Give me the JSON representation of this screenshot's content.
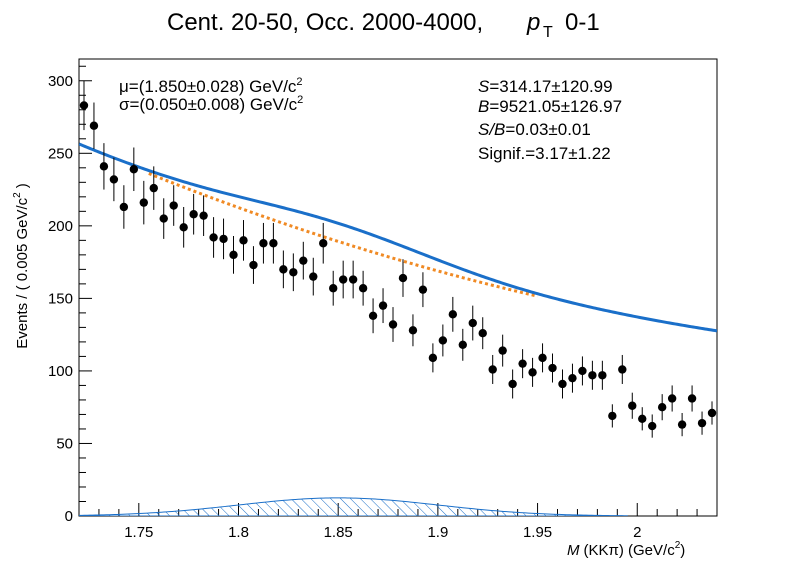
{
  "chart_data": {
    "type": "scatter",
    "title": "Cent. 20-50, Occ. 2000-4000,",
    "title_pt_symbol": "p",
    "title_pt_subscript": "T",
    "title_pt_range": "0-1",
    "xlabel_symbol": "M",
    "xlabel_rest": "(KKπ) (GeV/c",
    "xlabel_power": "2",
    "xlabel_close": ")",
    "ylabel": "Events / ( 0.005 GeV/c",
    "ylabel_power": "2",
    "ylabel_close": ")",
    "xlim": [
      1.72,
      2.04
    ],
    "ylim": [
      0,
      315
    ],
    "x_ticks": [
      "1.75",
      "1.8",
      "1.85",
      "1.9",
      "1.95",
      "2"
    ],
    "y_ticks": [
      "0",
      "50",
      "100",
      "150",
      "200",
      "250",
      "300"
    ],
    "fit_params": {
      "mu": "μ=(1.850±0.028) GeV/c",
      "mu_power": "2",
      "sigma": "σ=(0.050±0.008) GeV/c",
      "sigma_power": "2"
    },
    "stats": {
      "S_sym": "S",
      "S_val": "=314.17±120.99",
      "B_sym": "B",
      "B_val": "=9521.05±126.97",
      "SB_sym": "S/B",
      "SB_val": "=0.03±0.01",
      "signif": "Signif.=3.17±1.22"
    },
    "colors": {
      "data": "#000000",
      "total_fit": "#1a6fc9",
      "background_fit": "#f08a24",
      "signal": "#1a6fc9"
    },
    "series": [
      {
        "x": [
          1.7225,
          1.7275,
          1.7325,
          1.7375,
          1.7425,
          1.7475,
          1.7525,
          1.7575,
          1.7625,
          1.7675,
          1.7725,
          1.7775,
          1.7825,
          1.7875,
          1.7925,
          1.7975,
          1.8025,
          1.8075,
          1.8125,
          1.8175,
          1.8225,
          1.8275,
          1.8325,
          1.8375,
          1.8425,
          1.8475,
          1.8525,
          1.8575,
          1.8625,
          1.8675,
          1.8725,
          1.8775,
          1.8825,
          1.8875,
          1.8925,
          1.8975,
          1.9025,
          1.9075,
          1.9125,
          1.9175,
          1.9225,
          1.9275,
          1.9325,
          1.9375,
          1.9425,
          1.9475,
          1.9525,
          1.9575,
          1.9625,
          1.9675,
          1.9725,
          1.9775,
          1.9825,
          1.9875,
          1.9925,
          1.9975,
          2.0025,
          2.0075,
          2.0125,
          2.0175,
          2.0225,
          2.0275,
          2.0325,
          2.0375
        ],
        "values": [
          283,
          269,
          241,
          232,
          213,
          239,
          216,
          226,
          205,
          214,
          199,
          208,
          207,
          192,
          191,
          180,
          190,
          173,
          188,
          188,
          170,
          168,
          176,
          165,
          188,
          157,
          163,
          163,
          157,
          138,
          145,
          132,
          164,
          128,
          156,
          109,
          121,
          139,
          118,
          133,
          126,
          101,
          114,
          91,
          105,
          99,
          109,
          102,
          91,
          95,
          100,
          97,
          97,
          69,
          101,
          76,
          67,
          62,
          75,
          81,
          63,
          81,
          64,
          71
        ],
        "errors": [
          17,
          16,
          16,
          15,
          15,
          15,
          15,
          15,
          14,
          14,
          14,
          14,
          14,
          14,
          14,
          13,
          14,
          13,
          14,
          14,
          13,
          13,
          13,
          13,
          14,
          12,
          13,
          13,
          12,
          12,
          12,
          12,
          13,
          11,
          12,
          10,
          11,
          12,
          11,
          12,
          11,
          10,
          11,
          10,
          10,
          10,
          10,
          10,
          10,
          10,
          10,
          10,
          10,
          8,
          10,
          9,
          8,
          8,
          9,
          9,
          8,
          9,
          8,
          8
        ]
      }
    ],
    "model": {
      "total_a": 256.6,
      "total_b": -5.906,
      "total_c": 5.99,
      "bkg_b": -5.73,
      "bkg_c": 5.55,
      "signal_mu": 1.85,
      "signal_sigma": 0.05,
      "signal_peak": 12.5
    },
    "grid": false,
    "legend": "none"
  }
}
